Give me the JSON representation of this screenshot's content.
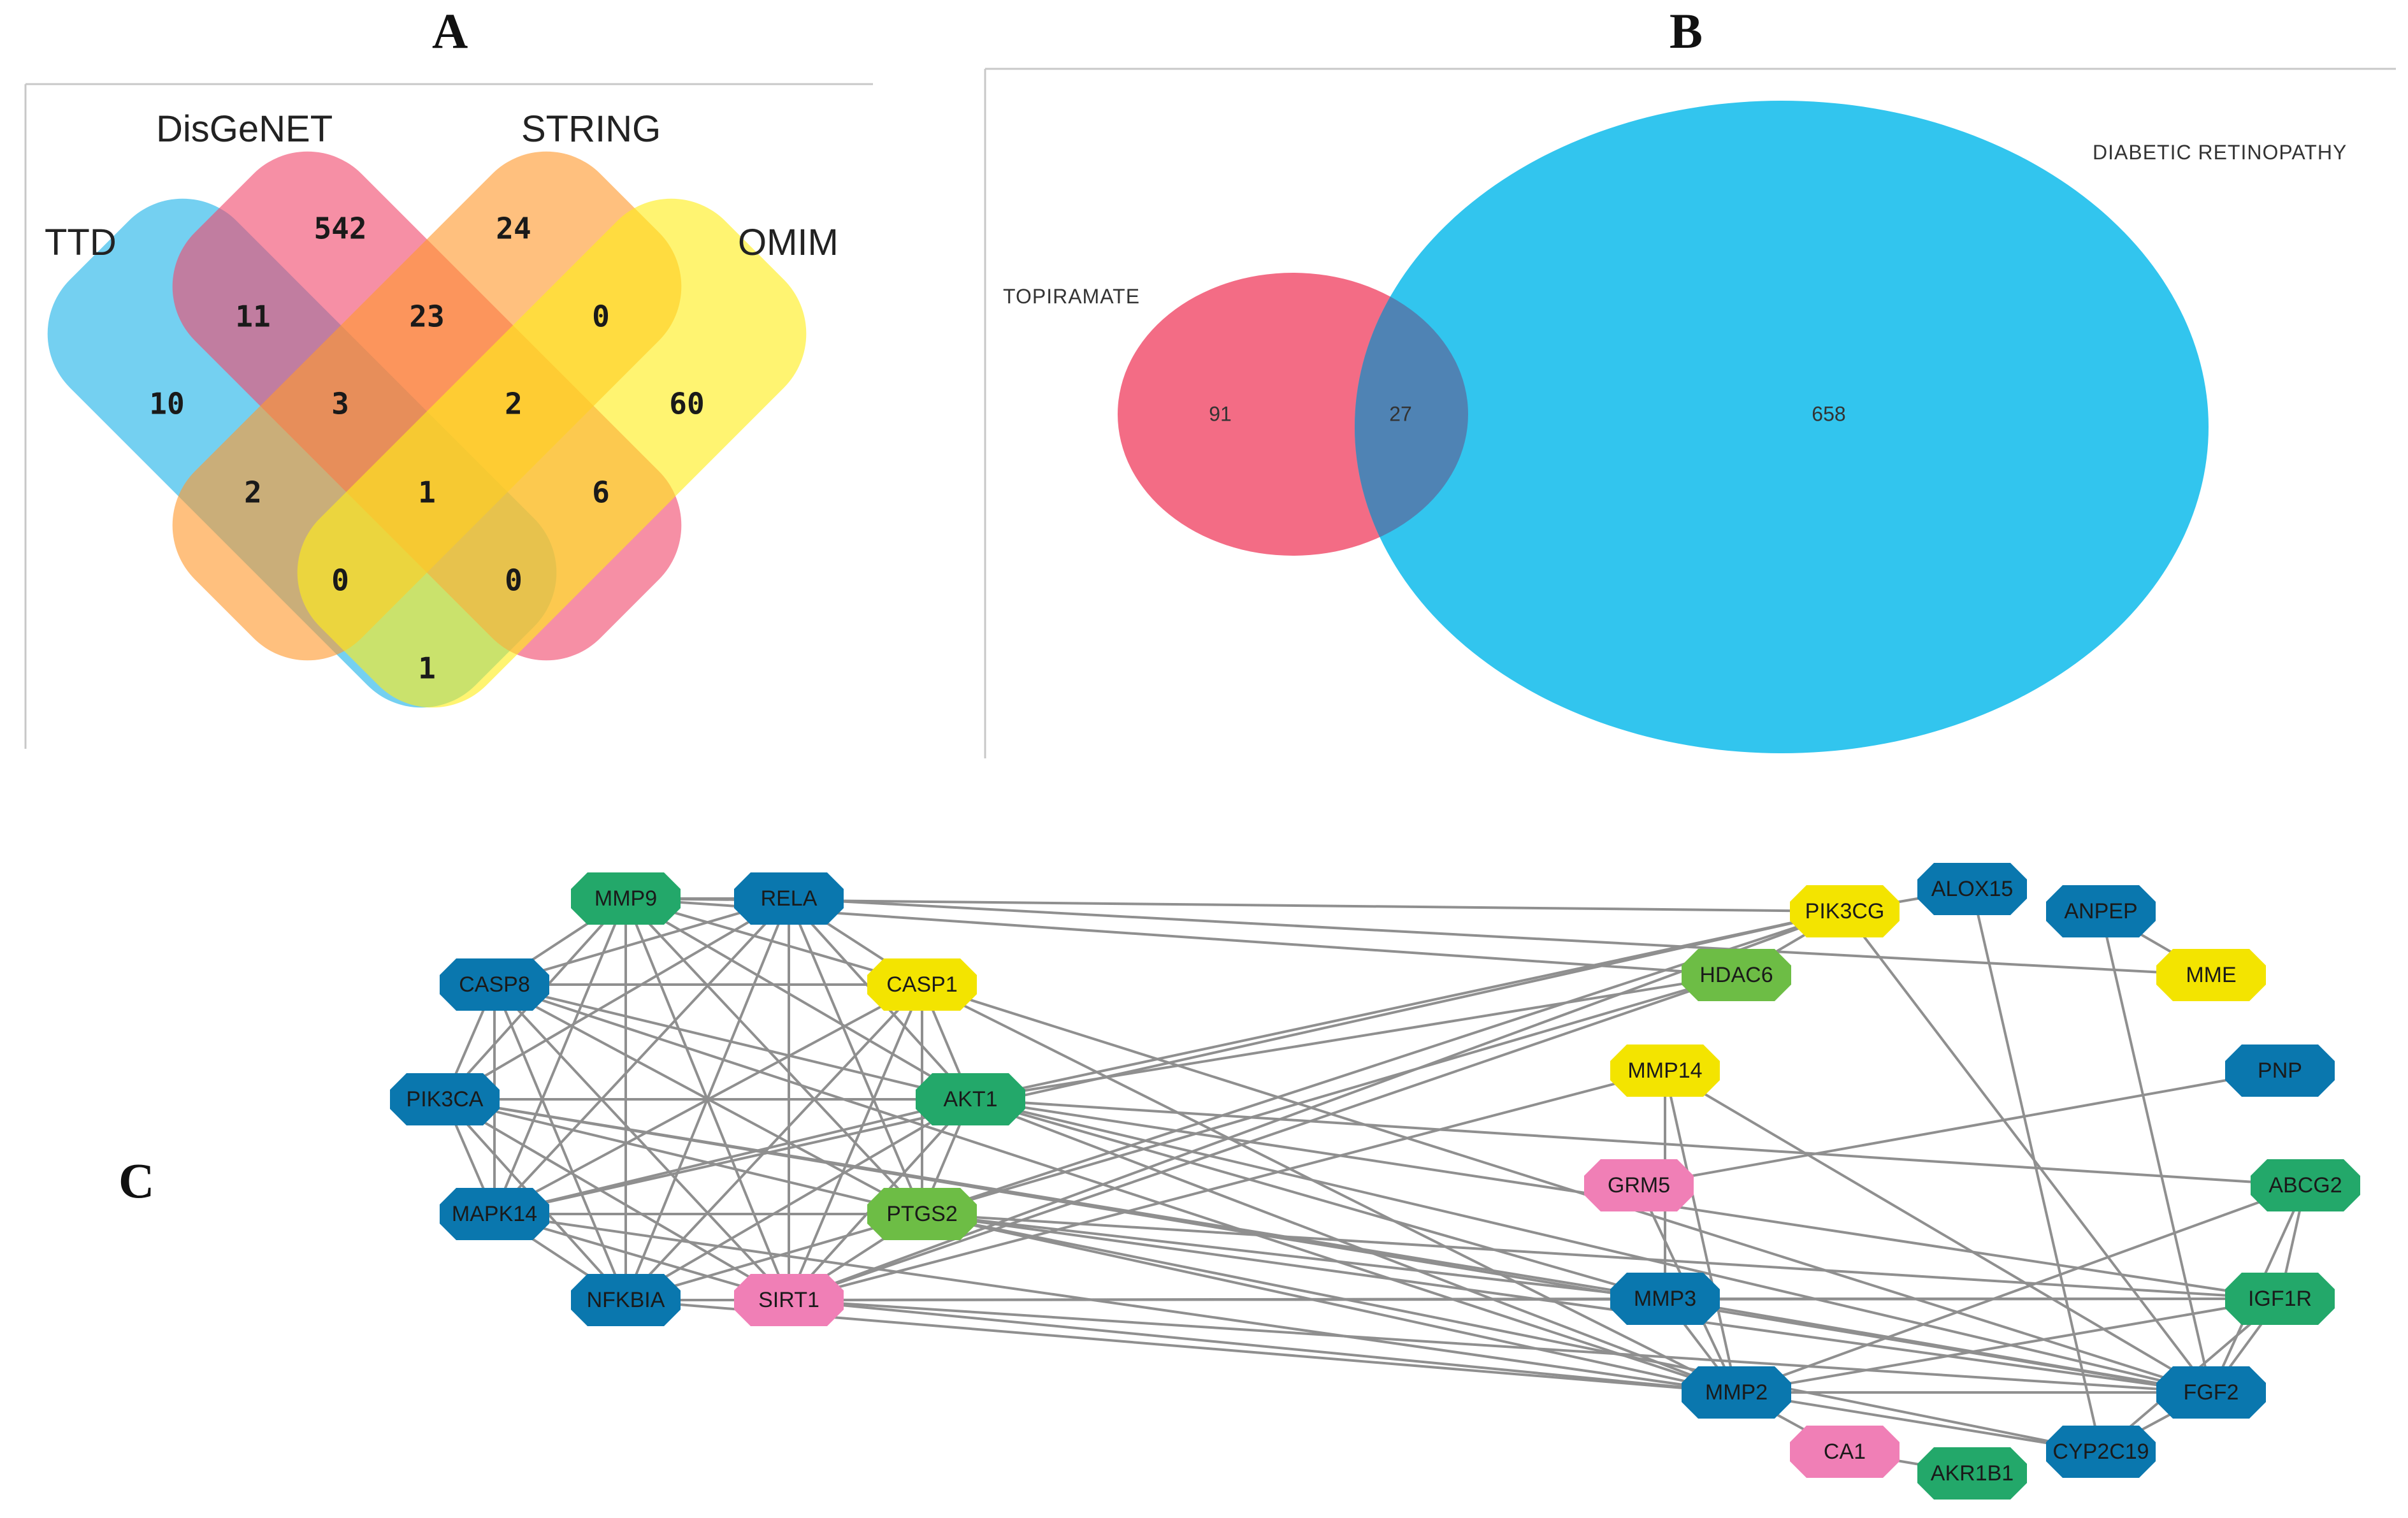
{
  "panels": {
    "a": {
      "letter": "A"
    },
    "b": {
      "letter": "B"
    },
    "c": {
      "letter": "C"
    }
  },
  "panel_a": {
    "sets": [
      "TTD",
      "DisGeNET",
      "STRING",
      "OMIM"
    ],
    "set_colors": {
      "TTD": "#1fb3e8",
      "DisGeNET": "#f04a6d",
      "STRING": "#ff9a2e",
      "OMIM": "#ffee1a"
    },
    "regions": {
      "disgenet_only": "542",
      "string_only": "24",
      "ttd_only": "10",
      "omim_only": "60",
      "ttd_disgenet": "11",
      "disgenet_string": "23",
      "string_omim": "0",
      "ttd_disgenet_string": "3",
      "disgenet_string_omim": "2",
      "ttd_string": "2",
      "all_four": "1",
      "disgenet_omim": "6",
      "ttd_string_omim": "0",
      "ttd_disgenet_omim": "0",
      "ttd_omim": "1"
    }
  },
  "panel_b": {
    "left_label": "TOPIRAMATE",
    "right_label": "DIABETIC RETINOPATHY",
    "left_only": "91",
    "overlap": "27",
    "right_only": "658",
    "left_color": "#f2647e",
    "right_color": "#32c5ee",
    "overlap_color": "#4f83b4"
  },
  "panel_c": {
    "palette": {
      "blue": "#0a77ae",
      "green": "#23a86a",
      "lime": "#6dbd45",
      "yellow": "#f3e400",
      "pink": "#f07fb6"
    },
    "nodes": [
      {
        "id": "MMP9",
        "label": "MMP9",
        "color": "green"
      },
      {
        "id": "RELA",
        "label": "RELA",
        "color": "blue"
      },
      {
        "id": "CASP8",
        "label": "CASP8",
        "color": "blue"
      },
      {
        "id": "CASP1",
        "label": "CASP1",
        "color": "yellow"
      },
      {
        "id": "PIK3CA",
        "label": "PIK3CA",
        "color": "blue"
      },
      {
        "id": "AKT1",
        "label": "AKT1",
        "color": "green"
      },
      {
        "id": "MAPK14",
        "label": "MAPK14",
        "color": "blue"
      },
      {
        "id": "PTGS2",
        "label": "PTGS2",
        "color": "lime"
      },
      {
        "id": "NFKBIA",
        "label": "NFKBIA",
        "color": "blue"
      },
      {
        "id": "SIRT1",
        "label": "SIRT1",
        "color": "pink"
      },
      {
        "id": "PIK3CG",
        "label": "PIK3CG",
        "color": "yellow"
      },
      {
        "id": "ALOX15",
        "label": "ALOX15",
        "color": "blue"
      },
      {
        "id": "ANPEP",
        "label": "ANPEP",
        "color": "blue"
      },
      {
        "id": "HDAC6",
        "label": "HDAC6",
        "color": "lime"
      },
      {
        "id": "MME",
        "label": "MME",
        "color": "yellow"
      },
      {
        "id": "MMP14",
        "label": "MMP14",
        "color": "yellow"
      },
      {
        "id": "PNP",
        "label": "PNP",
        "color": "blue"
      },
      {
        "id": "GRM5",
        "label": "GRM5",
        "color": "pink"
      },
      {
        "id": "ABCG2",
        "label": "ABCG2",
        "color": "green"
      },
      {
        "id": "MMP3",
        "label": "MMP3",
        "color": "blue"
      },
      {
        "id": "IGF1R",
        "label": "IGF1R",
        "color": "green"
      },
      {
        "id": "MMP2",
        "label": "MMP2",
        "color": "blue"
      },
      {
        "id": "FGF2",
        "label": "FGF2",
        "color": "blue"
      },
      {
        "id": "CA1",
        "label": "CA1",
        "color": "pink"
      },
      {
        "id": "AKR1B1",
        "label": "AKR1B1",
        "color": "green"
      },
      {
        "id": "CYP2C19",
        "label": "CYP2C19",
        "color": "blue"
      }
    ],
    "edges": [
      [
        "MMP9",
        "RELA"
      ],
      [
        "MMP9",
        "CASP8"
      ],
      [
        "MMP9",
        "CASP1"
      ],
      [
        "MMP9",
        "PIK3CA"
      ],
      [
        "MMP9",
        "AKT1"
      ],
      [
        "MMP9",
        "MAPK14"
      ],
      [
        "MMP9",
        "PTGS2"
      ],
      [
        "MMP9",
        "NFKBIA"
      ],
      [
        "MMP9",
        "SIRT1"
      ],
      [
        "MMP9",
        "PIK3CG"
      ],
      [
        "MMP9",
        "HDAC6"
      ],
      [
        "RELA",
        "CASP8"
      ],
      [
        "RELA",
        "CASP1"
      ],
      [
        "RELA",
        "PIK3CA"
      ],
      [
        "RELA",
        "AKT1"
      ],
      [
        "RELA",
        "MAPK14"
      ],
      [
        "RELA",
        "PTGS2"
      ],
      [
        "RELA",
        "NFKBIA"
      ],
      [
        "RELA",
        "SIRT1"
      ],
      [
        "RELA",
        "MME"
      ],
      [
        "CASP8",
        "CASP1"
      ],
      [
        "CASP8",
        "PIK3CA"
      ],
      [
        "CASP8",
        "AKT1"
      ],
      [
        "CASP8",
        "MAPK14"
      ],
      [
        "CASP8",
        "PTGS2"
      ],
      [
        "CASP8",
        "NFKBIA"
      ],
      [
        "CASP8",
        "SIRT1"
      ],
      [
        "CASP8",
        "MMP2"
      ],
      [
        "CASP1",
        "AKT1"
      ],
      [
        "CASP1",
        "PTGS2"
      ],
      [
        "CASP1",
        "NFKBIA"
      ],
      [
        "CASP1",
        "SIRT1"
      ],
      [
        "CASP1",
        "MAPK14"
      ],
      [
        "CASP1",
        "MMP2"
      ],
      [
        "CASP1",
        "FGF2"
      ],
      [
        "PIK3CA",
        "AKT1"
      ],
      [
        "PIK3CA",
        "MAPK14"
      ],
      [
        "PIK3CA",
        "PTGS2"
      ],
      [
        "PIK3CA",
        "NFKBIA"
      ],
      [
        "PIK3CA",
        "SIRT1"
      ],
      [
        "PIK3CA",
        "MMP3"
      ],
      [
        "PIK3CA",
        "FGF2"
      ],
      [
        "AKT1",
        "MAPK14"
      ],
      [
        "AKT1",
        "PTGS2"
      ],
      [
        "AKT1",
        "NFKBIA"
      ],
      [
        "AKT1",
        "SIRT1"
      ],
      [
        "AKT1",
        "PIK3CG"
      ],
      [
        "AKT1",
        "HDAC6"
      ],
      [
        "AKT1",
        "ABCG2"
      ],
      [
        "AKT1",
        "MMP3"
      ],
      [
        "AKT1",
        "IGF1R"
      ],
      [
        "AKT1",
        "MMP2"
      ],
      [
        "AKT1",
        "FGF2"
      ],
      [
        "MAPK14",
        "PTGS2"
      ],
      [
        "MAPK14",
        "NFKBIA"
      ],
      [
        "MAPK14",
        "SIRT1"
      ],
      [
        "MAPK14",
        "PIK3CG"
      ],
      [
        "MAPK14",
        "MMP2"
      ],
      [
        "PTGS2",
        "NFKBIA"
      ],
      [
        "PTGS2",
        "SIRT1"
      ],
      [
        "PTGS2",
        "PIK3CG"
      ],
      [
        "PTGS2",
        "HDAC6"
      ],
      [
        "PTGS2",
        "MMP3"
      ],
      [
        "PTGS2",
        "IGF1R"
      ],
      [
        "PTGS2",
        "MMP2"
      ],
      [
        "PTGS2",
        "FGF2"
      ],
      [
        "PTGS2",
        "CYP2C19"
      ],
      [
        "NFKBIA",
        "SIRT1"
      ],
      [
        "NFKBIA",
        "MMP2"
      ],
      [
        "SIRT1",
        "PIK3CG"
      ],
      [
        "SIRT1",
        "HDAC6"
      ],
      [
        "SIRT1",
        "MMP14"
      ],
      [
        "SIRT1",
        "MMP3"
      ],
      [
        "SIRT1",
        "IGF1R"
      ],
      [
        "SIRT1",
        "MMP2"
      ],
      [
        "SIRT1",
        "FGF2"
      ],
      [
        "PIK3CG",
        "HDAC6"
      ],
      [
        "PIK3CG",
        "ALOX15"
      ],
      [
        "PIK3CG",
        "FGF2"
      ],
      [
        "ALOX15",
        "CYP2C19"
      ],
      [
        "ANPEP",
        "MME"
      ],
      [
        "ANPEP",
        "FGF2"
      ],
      [
        "MMP14",
        "MMP3"
      ],
      [
        "MMP14",
        "MMP2"
      ],
      [
        "MMP14",
        "FGF2"
      ],
      [
        "GRM5",
        "PNP"
      ],
      [
        "GRM5",
        "MMP2"
      ],
      [
        "ABCG2",
        "IGF1R"
      ],
      [
        "ABCG2",
        "FGF2"
      ],
      [
        "ABCG2",
        "MMP2"
      ],
      [
        "MMP3",
        "MMP2"
      ],
      [
        "MMP3",
        "IGF1R"
      ],
      [
        "MMP3",
        "FGF2"
      ],
      [
        "IGF1R",
        "FGF2"
      ],
      [
        "IGF1R",
        "MMP2"
      ],
      [
        "IGF1R",
        "CYP2C19"
      ],
      [
        "MMP2",
        "FGF2"
      ],
      [
        "MMP2",
        "CA1"
      ],
      [
        "MMP2",
        "CYP2C19"
      ],
      [
        "FGF2",
        "CYP2C19"
      ],
      [
        "CA1",
        "AKR1B1"
      ]
    ]
  }
}
